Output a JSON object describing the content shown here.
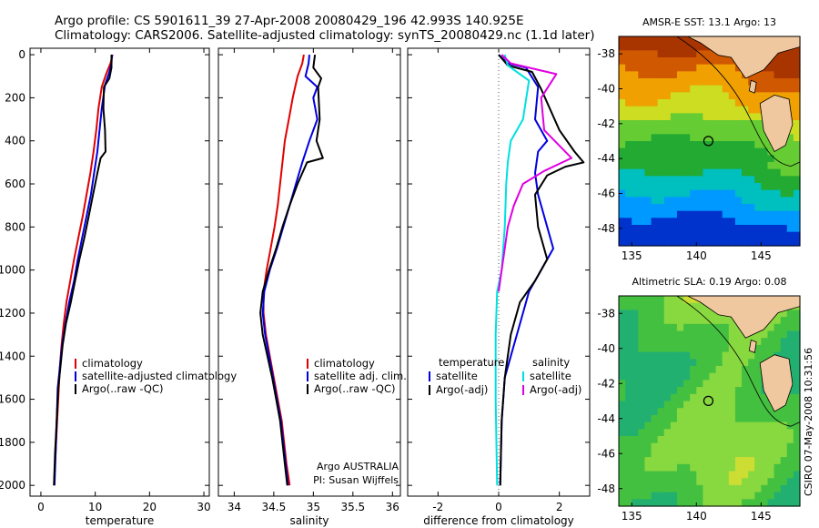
{
  "header": {
    "title_line1": "Argo profile: CS 5901611_39 27-Apr-2008 20080429_196 42.993S 140.925E",
    "title_line2": "Climatology: CARS2006. Satellite-adjusted climatology: synTS_20080429.nc (1.1d later)"
  },
  "credit": {
    "line1": "Argo AUSTRALIA",
    "line2": "PI: Susan Wijffels"
  },
  "footer_stamp": "CSIRO 07-May-2008 10:31:56",
  "maps": [
    {
      "title": "AMSR-E SST: 13.1 Argo: 13",
      "xticks": [
        "135",
        "140",
        "145"
      ],
      "yticks": [
        "-38",
        "-40",
        "-42",
        "-44",
        "-46",
        "-48"
      ],
      "lon_range": [
        134,
        148
      ],
      "lat_range": [
        -49,
        -37
      ],
      "float_position": {
        "lon": 140.925,
        "lat": -42.993
      },
      "palette": "sst"
    },
    {
      "title": "Altimetric SLA: 0.19 Argo: 0.08",
      "xticks": [
        "135",
        "140",
        "145"
      ],
      "yticks": [
        "-38",
        "-40",
        "-42",
        "-44",
        "-46",
        "-48"
      ],
      "lon_range": [
        134,
        148
      ],
      "lat_range": [
        -49,
        -37
      ],
      "float_position": {
        "lon": 140.925,
        "lat": -42.993
      },
      "palette": "sla"
    }
  ],
  "colors": {
    "climatology": "#e00000",
    "satellite": "#0000e0",
    "argo": "#000000",
    "argo_salinity_diff": "#e000e0",
    "satellite_salinity_diff": "#00e0e0",
    "zero_line": "#555555"
  },
  "chart_data": [
    {
      "type": "line",
      "xlabel": "temperature",
      "ylabel": "",
      "xlim": [
        -2,
        31
      ],
      "ylim": [
        2050,
        0
      ],
      "xticks": [
        "0",
        "10",
        "20",
        "30"
      ],
      "yticks": [
        "0",
        "200",
        "400",
        "600",
        "800",
        "1000",
        "1200",
        "1400",
        "1600",
        "1800",
        "2000"
      ],
      "legend_position": "lower-left",
      "legend": [
        "climatology",
        "satellite-adjusted climatology",
        "Argo(..raw -QC)"
      ],
      "series": [
        {
          "name": "climatology",
          "color": "#e00000",
          "points": [
            [
              13.2,
              0
            ],
            [
              12.8,
              40
            ],
            [
              12.0,
              90
            ],
            [
              11.2,
              150
            ],
            [
              10.6,
              250
            ],
            [
              10.2,
              350
            ],
            [
              9.7,
              450
            ],
            [
              9.1,
              550
            ],
            [
              8.4,
              650
            ],
            [
              7.7,
              750
            ],
            [
              6.9,
              850
            ],
            [
              6.1,
              950
            ],
            [
              5.4,
              1050
            ],
            [
              4.7,
              1150
            ],
            [
              4.2,
              1250
            ],
            [
              3.8,
              1350
            ],
            [
              3.5,
              1450
            ],
            [
              3.3,
              1550
            ],
            [
              3.0,
              1700
            ],
            [
              2.7,
              1850
            ],
            [
              2.4,
              2000
            ]
          ]
        },
        {
          "name": "satellite-adjusted climatology",
          "color": "#0000e0",
          "points": [
            [
              13.1,
              0
            ],
            [
              13.0,
              40
            ],
            [
              12.6,
              80
            ],
            [
              11.8,
              140
            ],
            [
              11.2,
              250
            ],
            [
              10.8,
              350
            ],
            [
              10.4,
              450
            ],
            [
              9.8,
              550
            ],
            [
              9.2,
              650
            ],
            [
              8.4,
              750
            ],
            [
              7.6,
              850
            ],
            [
              6.8,
              950
            ],
            [
              6.1,
              1050
            ],
            [
              5.2,
              1150
            ],
            [
              4.5,
              1250
            ],
            [
              3.9,
              1350
            ],
            [
              3.5,
              1450
            ],
            [
              3.1,
              1550
            ],
            [
              2.9,
              1700
            ],
            [
              2.7,
              1850
            ],
            [
              2.5,
              2000
            ]
          ]
        },
        {
          "name": "Argo(..raw -QC)",
          "color": "#000000",
          "points": [
            [
              13.0,
              0
            ],
            [
              13.0,
              60
            ],
            [
              12.6,
              110
            ],
            [
              11.6,
              150
            ],
            [
              11.5,
              250
            ],
            [
              11.8,
              350
            ],
            [
              11.9,
              450
            ],
            [
              11.0,
              480
            ],
            [
              10.4,
              550
            ],
            [
              9.6,
              650
            ],
            [
              8.8,
              750
            ],
            [
              8.0,
              850
            ],
            [
              7.1,
              950
            ],
            [
              6.3,
              1050
            ],
            [
              5.5,
              1150
            ],
            [
              4.6,
              1250
            ],
            [
              4.0,
              1350
            ],
            [
              3.6,
              1450
            ],
            [
              3.2,
              1550
            ],
            [
              2.9,
              1700
            ],
            [
              2.6,
              1850
            ],
            [
              2.4,
              2000
            ]
          ]
        }
      ]
    },
    {
      "type": "line",
      "xlabel": "salinity",
      "ylabel": "",
      "xlim": [
        33.8,
        36.1
      ],
      "ylim": [
        2050,
        0
      ],
      "xticks": [
        "34",
        "34.5",
        "35",
        "35.5",
        "36"
      ],
      "yticks": [],
      "legend_position": "lower-right",
      "legend": [
        "climatology",
        "satellite adj. clim.",
        "Argo(..raw -QC)"
      ],
      "series": [
        {
          "name": "climatology",
          "color": "#e00000",
          "points": [
            [
              34.88,
              0
            ],
            [
              34.86,
              40
            ],
            [
              34.8,
              100
            ],
            [
              34.74,
              200
            ],
            [
              34.69,
              300
            ],
            [
              34.64,
              400
            ],
            [
              34.61,
              500
            ],
            [
              34.58,
              600
            ],
            [
              34.55,
              700
            ],
            [
              34.51,
              800
            ],
            [
              34.46,
              900
            ],
            [
              34.41,
              1000
            ],
            [
              34.37,
              1100
            ],
            [
              34.37,
              1200
            ],
            [
              34.4,
              1300
            ],
            [
              34.45,
              1400
            ],
            [
              34.5,
              1500
            ],
            [
              34.55,
              1600
            ],
            [
              34.6,
              1700
            ],
            [
              34.63,
              1800
            ],
            [
              34.66,
              1900
            ],
            [
              34.7,
              2000
            ]
          ]
        },
        {
          "name": "satellite adj. clim.",
          "color": "#0000e0",
          "points": [
            [
              34.95,
              0
            ],
            [
              34.94,
              40
            ],
            [
              34.9,
              100
            ],
            [
              35.05,
              150
            ],
            [
              35.0,
              200
            ],
            [
              35.05,
              300
            ],
            [
              34.95,
              400
            ],
            [
              34.86,
              500
            ],
            [
              34.78,
              600
            ],
            [
              34.7,
              700
            ],
            [
              34.62,
              800
            ],
            [
              34.54,
              900
            ],
            [
              34.45,
              1000
            ],
            [
              34.38,
              1100
            ],
            [
              34.36,
              1200
            ],
            [
              34.39,
              1300
            ],
            [
              34.44,
              1400
            ],
            [
              34.49,
              1500
            ],
            [
              34.54,
              1600
            ],
            [
              34.59,
              1700
            ],
            [
              34.62,
              1800
            ],
            [
              34.65,
              1900
            ],
            [
              34.68,
              2000
            ]
          ]
        },
        {
          "name": "Argo(..raw -QC)",
          "color": "#000000",
          "points": [
            [
              35.02,
              0
            ],
            [
              35.0,
              60
            ],
            [
              35.1,
              110
            ],
            [
              35.06,
              150
            ],
            [
              35.08,
              300
            ],
            [
              35.04,
              400
            ],
            [
              35.12,
              480
            ],
            [
              34.92,
              500
            ],
            [
              34.8,
              600
            ],
            [
              34.7,
              700
            ],
            [
              34.61,
              800
            ],
            [
              34.53,
              900
            ],
            [
              34.44,
              1000
            ],
            [
              34.36,
              1100
            ],
            [
              34.33,
              1200
            ],
            [
              34.36,
              1300
            ],
            [
              34.42,
              1400
            ],
            [
              34.48,
              1500
            ],
            [
              34.53,
              1600
            ],
            [
              34.58,
              1700
            ],
            [
              34.61,
              1800
            ],
            [
              34.64,
              1900
            ],
            [
              34.67,
              2000
            ]
          ]
        }
      ]
    },
    {
      "type": "line",
      "xlabel": "difference from climatology",
      "ylabel": "",
      "xlim": [
        -3,
        3
      ],
      "ylim": [
        2050,
        0
      ],
      "xticks": [
        "-2",
        "0",
        "2"
      ],
      "yticks": [],
      "legend_position": "lower-center",
      "legend_groups": [
        {
          "heading": "temperature",
          "entries": [
            "satellite",
            "Argo(-adj)"
          ]
        },
        {
          "heading": "salinity",
          "entries": [
            "satellite",
            "Argo(-adj)"
          ]
        }
      ],
      "series": [
        {
          "name": "satellite (temperature)",
          "color": "#0000e0",
          "points": [
            [
              0.0,
              0
            ],
            [
              0.3,
              40
            ],
            [
              0.9,
              60
            ],
            [
              1.3,
              150
            ],
            [
              1.2,
              300
            ],
            [
              1.6,
              400
            ],
            [
              1.3,
              450
            ],
            [
              1.2,
              550
            ],
            [
              1.3,
              650
            ],
            [
              1.5,
              750
            ],
            [
              1.8,
              900
            ],
            [
              1.4,
              1000
            ],
            [
              1.0,
              1100
            ],
            [
              0.8,
              1200
            ],
            [
              0.6,
              1300
            ],
            [
              0.4,
              1400
            ],
            [
              0.2,
              1500
            ],
            [
              0.1,
              1700
            ],
            [
              0.05,
              2000
            ]
          ]
        },
        {
          "name": "Argo(-adj) (temperature)",
          "color": "#000000",
          "points": [
            [
              0.0,
              0
            ],
            [
              0.3,
              50
            ],
            [
              1.1,
              80
            ],
            [
              1.4,
              160
            ],
            [
              2.0,
              350
            ],
            [
              2.5,
              450
            ],
            [
              2.8,
              500
            ],
            [
              2.2,
              520
            ],
            [
              1.6,
              560
            ],
            [
              1.2,
              650
            ],
            [
              1.3,
              800
            ],
            [
              1.6,
              950
            ],
            [
              1.2,
              1050
            ],
            [
              0.7,
              1150
            ],
            [
              0.4,
              1300
            ],
            [
              0.3,
              1400
            ],
            [
              0.2,
              1500
            ],
            [
              0.1,
              1700
            ],
            [
              0.05,
              2000
            ]
          ]
        },
        {
          "name": "satellite (salinity)",
          "color": "#00e0e0",
          "points": [
            [
              0.2,
              0
            ],
            [
              0.3,
              50
            ],
            [
              1.0,
              120
            ],
            [
              0.8,
              300
            ],
            [
              0.4,
              400
            ],
            [
              0.3,
              500
            ],
            [
              0.25,
              600
            ],
            [
              0.2,
              800
            ],
            [
              0.1,
              1000
            ],
            [
              -0.05,
              1100
            ],
            [
              -0.1,
              1300
            ],
            [
              -0.1,
              1600
            ],
            [
              -0.05,
              2000
            ]
          ]
        },
        {
          "name": "Argo(-adj) (salinity)",
          "color": "#e000e0",
          "points": [
            [
              0.1,
              0
            ],
            [
              0.4,
              40
            ],
            [
              1.9,
              90
            ],
            [
              1.4,
              200
            ],
            [
              1.5,
              350
            ],
            [
              2.4,
              480
            ],
            [
              1.5,
              540
            ],
            [
              0.8,
              600
            ],
            [
              0.5,
              700
            ],
            [
              0.3,
              800
            ],
            [
              0.2,
              900
            ],
            [
              0.1,
              1000
            ],
            [
              0.0,
              1100
            ]
          ]
        }
      ]
    }
  ]
}
